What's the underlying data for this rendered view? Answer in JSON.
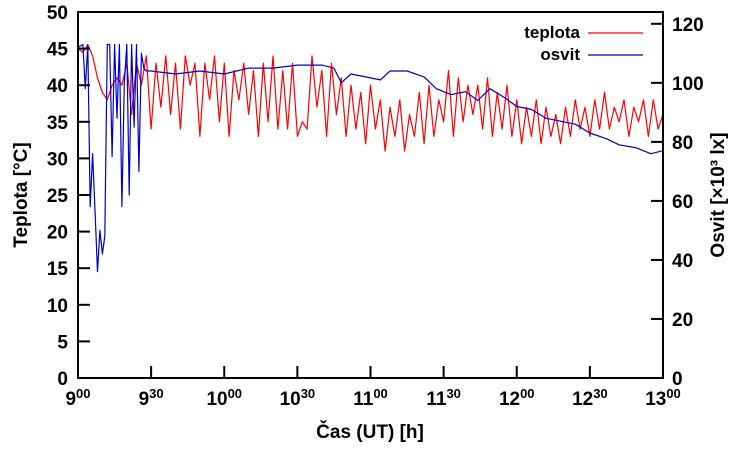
{
  "chart_data": {
    "type": "line",
    "title": "",
    "xlabel": "Čas (UT) [h]",
    "ylabel": "Teplota [°C]",
    "y2label": "Osvit [×10³ lx]",
    "xlim_minutes_after_9": [
      0,
      240
    ],
    "ylim": [
      0,
      50
    ],
    "y2lim": [
      0,
      124
    ],
    "grid": false,
    "legend_placement": "top-right",
    "xticks": [
      {
        "h": "9",
        "m": "00",
        "t": 0
      },
      {
        "h": "9",
        "m": "30",
        "t": 30
      },
      {
        "h": "10",
        "m": "00",
        "t": 60
      },
      {
        "h": "10",
        "m": "30",
        "t": 90
      },
      {
        "h": "11",
        "m": "00",
        "t": 120
      },
      {
        "h": "11",
        "m": "30",
        "t": 150
      },
      {
        "h": "12",
        "m": "00",
        "t": 180
      },
      {
        "h": "12",
        "m": "30",
        "t": 210
      },
      {
        "h": "13",
        "m": "00",
        "t": 240
      }
    ],
    "yticks": [
      "0",
      "5",
      "10",
      "15",
      "20",
      "25",
      "30",
      "35",
      "40",
      "45",
      "50"
    ],
    "y2ticks": [
      "0",
      "20",
      "40",
      "60",
      "80",
      "100",
      "120"
    ],
    "series": [
      {
        "name": "teplota",
        "axis": "left",
        "color": "#ff0000",
        "step_minutes": 2,
        "values": [
          45,
          44.5,
          45.5,
          44,
          41,
          39,
          38,
          40,
          41,
          40,
          43,
          36,
          43,
          40,
          44,
          34,
          43,
          37,
          44,
          36,
          43,
          34,
          44,
          40,
          43,
          33,
          43,
          38,
          44,
          35,
          43,
          33,
          42,
          38,
          43,
          36,
          42,
          33,
          43,
          35,
          44,
          34,
          42,
          34,
          43,
          33,
          35,
          34,
          44,
          37,
          42,
          33,
          43,
          36,
          41,
          33,
          40,
          34,
          39,
          32,
          40,
          34,
          38,
          31,
          37,
          33,
          38,
          31,
          36,
          33,
          39,
          32,
          40,
          33,
          38,
          35,
          42,
          33,
          41,
          35,
          40,
          36,
          40,
          34,
          41,
          33,
          39,
          34,
          40,
          33,
          38,
          32,
          37,
          33,
          38,
          32,
          37,
          33,
          36,
          32,
          37,
          33,
          38,
          34,
          37,
          33,
          38,
          34,
          39,
          34,
          37,
          35,
          38,
          33,
          37,
          35,
          38,
          33,
          38,
          34,
          36
        ]
      },
      {
        "name": "osvit",
        "axis": "right",
        "color": "#0000cc",
        "t": [
          0,
          2,
          3,
          4,
          5,
          6,
          7,
          8,
          9,
          10,
          11,
          12,
          13,
          14,
          15,
          16,
          17,
          18,
          19,
          20,
          21,
          22,
          23,
          24,
          25,
          26,
          27,
          28,
          30,
          40,
          50,
          60,
          70,
          80,
          90,
          100,
          105,
          108,
          112,
          118,
          124,
          128,
          135,
          142,
          147,
          153,
          159,
          164,
          169,
          175,
          180,
          186,
          192,
          198,
          204,
          210,
          217,
          222,
          229,
          235,
          240
        ],
        "values": [
          112,
          113,
          98,
          113,
          58,
          76,
          56,
          36,
          50,
          42,
          48,
          113,
          113,
          75,
          113,
          88,
          113,
          58,
          100,
          113,
          62,
          113,
          85,
          113,
          70,
          110,
          105,
          104,
          104,
          103,
          104,
          103,
          105,
          105,
          106,
          106,
          105,
          100,
          103,
          102,
          101,
          104,
          104,
          102,
          98,
          96,
          97,
          94,
          98,
          95,
          92,
          91,
          88,
          87,
          86,
          83,
          81,
          79,
          78,
          76,
          77
        ]
      }
    ]
  }
}
